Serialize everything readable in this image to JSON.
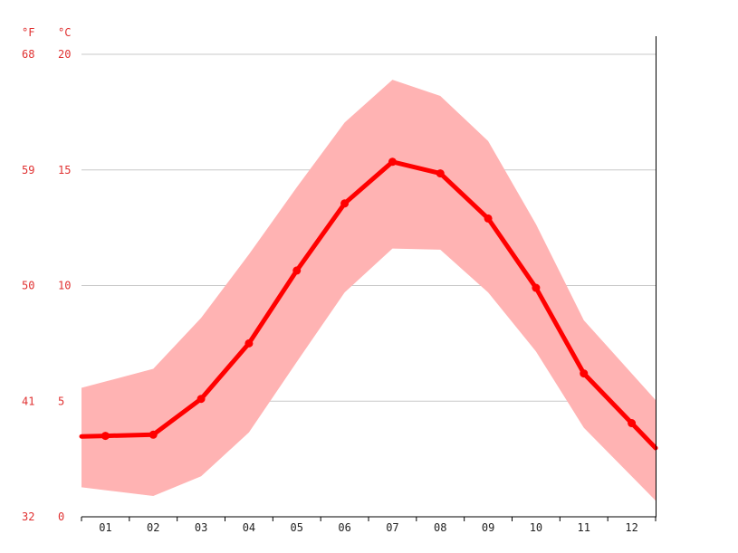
{
  "chart_data": {
    "type": "line",
    "title": "",
    "xlabel": "",
    "ylabel": "",
    "y_units": {
      "fahrenheit": "°F",
      "celsius": "°C"
    },
    "categories": [
      "01",
      "02",
      "03",
      "04",
      "05",
      "06",
      "07",
      "08",
      "09",
      "10",
      "11",
      "12"
    ],
    "y_ticks_celsius": [
      "0",
      "5",
      "10",
      "15",
      "20"
    ],
    "y_ticks_fahrenheit": [
      "32",
      "41",
      "50",
      "59",
      "68"
    ],
    "ylim": [
      0,
      20
    ],
    "grid": true,
    "legend": "none",
    "series": [
      {
        "values": [
          3.5,
          3.55,
          5.1,
          7.5,
          10.65,
          13.55,
          15.35,
          14.85,
          12.9,
          9.9,
          6.2,
          4.05
        ]
      },
      {
        "band": "max",
        "values": [
          5.85,
          6.4,
          8.6,
          11.35,
          14.25,
          17.05,
          18.9,
          18.2,
          16.25,
          12.65,
          8.5,
          6.2
        ]
      },
      {
        "band": "min",
        "values": [
          1.15,
          0.9,
          1.75,
          3.65,
          6.7,
          9.7,
          11.6,
          11.55,
          9.7,
          7.15,
          3.85,
          1.75
        ]
      }
    ],
    "colors": {
      "mean_line": "#ff0000",
      "band_fill": "#ffb3b3",
      "axis_labels": "#e03030"
    }
  }
}
